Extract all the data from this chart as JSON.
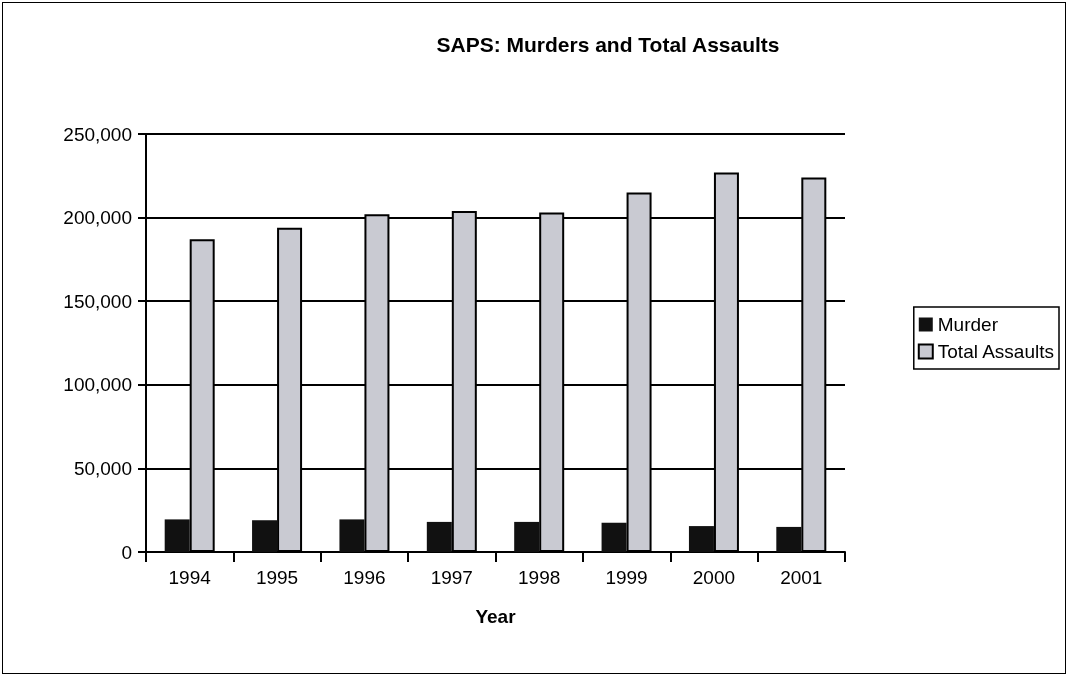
{
  "chart_data": {
    "type": "bar",
    "title": "SAPS: Murders and Total Assaults",
    "xlabel": "Year",
    "categories": [
      "1994",
      "1995",
      "1996",
      "1997",
      "1998",
      "1999",
      "2000",
      "2001"
    ],
    "series": [
      {
        "name": "Murder",
        "color": "#111111",
        "values": [
          19500,
          19000,
          19500,
          18000,
          18000,
          17500,
          15500,
          15000
        ]
      },
      {
        "name": "Total Assaults",
        "color": "#c9cad2",
        "values": [
          187000,
          194000,
          202000,
          204000,
          203000,
          215000,
          227000,
          224000
        ]
      }
    ],
    "ylim": [
      0,
      250000
    ],
    "yticks": [
      0,
      {
        "value": 50000,
        "label": "50,000"
      },
      {
        "value": 100000,
        "label": "100,000"
      },
      {
        "value": 150000,
        "label": "150,000"
      },
      {
        "value": 200000,
        "label": "200,000"
      },
      {
        "value": 250000,
        "label": "250,000"
      }
    ],
    "grid": "y",
    "legend": "right"
  }
}
